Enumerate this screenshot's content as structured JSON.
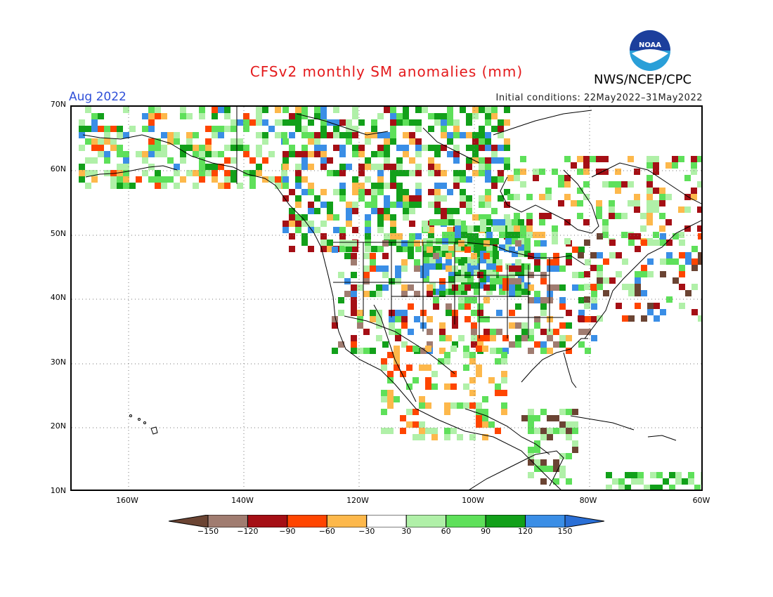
{
  "title": "CFSv2 monthly SM anomalies (mm)",
  "target_month": "Aug 2022",
  "initial_conditions": "Initial conditions: 22May2022–31May2022",
  "agency": "NWS/NCEP/CPC",
  "logo_text": "NOAA",
  "axes": {
    "lat_labels": [
      "70N",
      "60N",
      "50N",
      "40N",
      "30N",
      "20N",
      "10N"
    ],
    "lon_labels": [
      "160W",
      "140W",
      "120W",
      "100W",
      "80W",
      "60W"
    ]
  },
  "legend": {
    "ticks": [
      "−150",
      "−120",
      "−90",
      "−60",
      "−30",
      "30",
      "60",
      "90",
      "120",
      "150"
    ],
    "colors": [
      "#6b4433",
      "#a07c70",
      "#a50f15",
      "#ff4500",
      "#fdb84b",
      "#ffffff",
      "#b0f0a8",
      "#5ee05a",
      "#12a01a",
      "#3a8ee6",
      "#2a6fd6"
    ]
  },
  "map_features": [
    "North America coastline",
    "US state boundaries",
    "Canada/US/Mexico borders",
    "Caribbean islands",
    "Hawaii"
  ],
  "anomaly_colors": {
    "dry_extreme": "#6b4433",
    "dry_very": "#a07c70",
    "dry_high": "#a50f15",
    "dry_mod": "#ff4500",
    "dry_light": "#fdb84b",
    "wet_light": "#b0f0a8",
    "wet_mod": "#5ee05a",
    "wet_high": "#12a01a",
    "wet_very": "#3a8ee6"
  }
}
